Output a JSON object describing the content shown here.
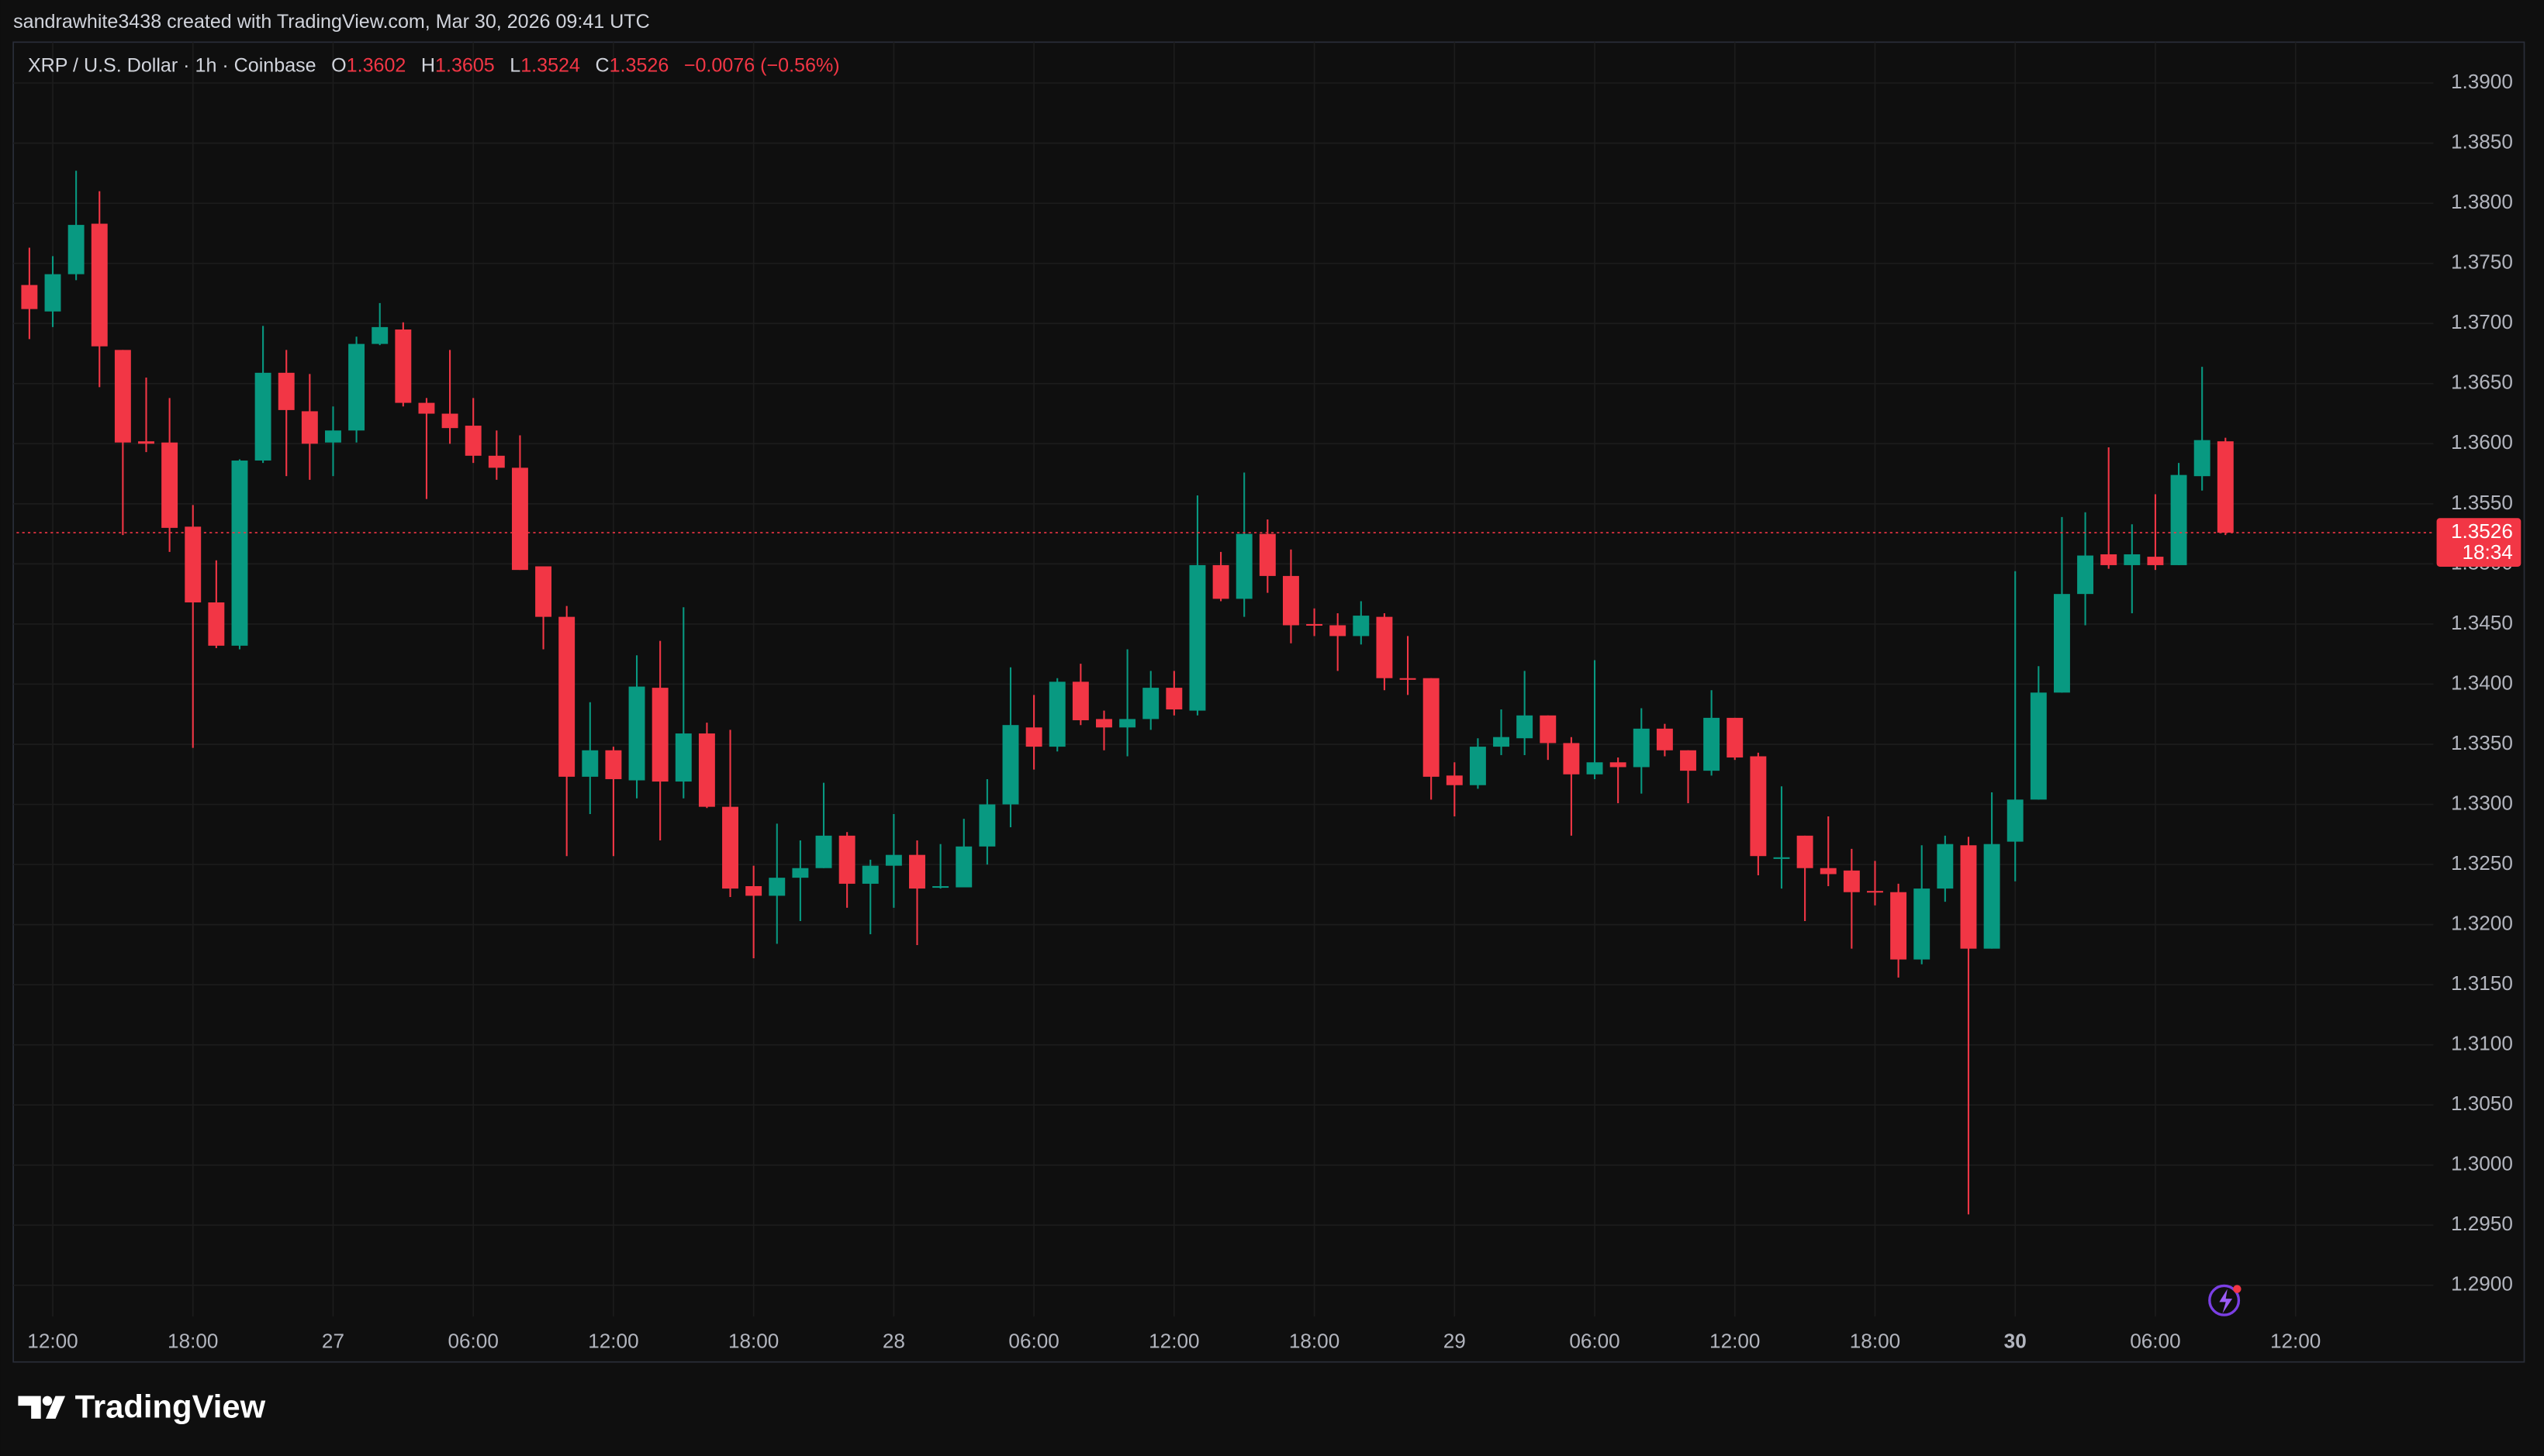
{
  "header": {
    "attribution": "sandrawhite3438 created with TradingView.com, Mar 30, 2026 09:41 UTC",
    "brand": "TradingView"
  },
  "chart_data": {
    "type": "candlestick",
    "title": "XRP / U.S. Dollar · 1h · Coinbase",
    "ohlc_labels": [
      "O",
      "H",
      "L",
      "C"
    ],
    "change": "−0.0076 (−0.56%)",
    "countdown": "18:34",
    "up_color": "#089981",
    "down_color": "#f23645",
    "grid": true,
    "open": [
      1.3732,
      1.371,
      1.3741,
      1.3783,
      1.3678,
      1.3602,
      1.3601,
      1.3531,
      1.3468,
      1.3432,
      1.3586,
      1.3659,
      1.3627,
      1.3601,
      1.3611,
      1.3683,
      1.3695,
      1.3634,
      1.3625,
      1.3615,
      1.359,
      1.358,
      1.3498,
      1.3456,
      1.3323,
      1.3345,
      1.332,
      1.3397,
      1.3319,
      1.3359,
      1.3298,
      1.3232,
      1.3224,
      1.3239,
      1.3247,
      1.3274,
      1.3234,
      1.3249,
      1.3258,
      1.3231,
      1.3231,
      1.3265,
      1.33,
      1.3364,
      1.3348,
      1.3402,
      1.3371,
      1.3364,
      1.3371,
      1.3397,
      1.3378,
      1.3499,
      1.3471,
      1.3525,
      1.349,
      1.345,
      1.3449,
      1.344,
      1.3456,
      1.3405,
      1.3405,
      1.3324,
      1.3316,
      1.3348,
      1.3355,
      1.3374,
      1.3351,
      1.3325,
      1.3335,
      1.3331,
      1.3363,
      1.3345,
      1.3328,
      1.3372,
      1.334,
      1.3255,
      1.3274,
      1.3247,
      1.3245,
      1.3228,
      1.3227,
      1.3171,
      1.323,
      1.3266,
      1.318,
      1.3269,
      1.3304,
      1.3393,
      1.3475,
      1.3508,
      1.3499,
      1.3506,
      1.3499,
      1.3573,
      1.3602
    ],
    "high": [
      1.3763,
      1.3756,
      1.3827,
      1.381,
      1.3678,
      1.3655,
      1.3638,
      1.3549,
      1.3503,
      1.3587,
      1.3698,
      1.3678,
      1.3658,
      1.3631,
      1.3689,
      1.3717,
      1.3701,
      1.3638,
      1.3678,
      1.3638,
      1.3611,
      1.3607,
      1.3498,
      1.3465,
      1.3385,
      1.3348,
      1.3424,
      1.3436,
      1.3464,
      1.3368,
      1.3362,
      1.3249,
      1.3284,
      1.327,
      1.3318,
      1.3277,
      1.3254,
      1.3292,
      1.327,
      1.3267,
      1.3288,
      1.3321,
      1.3414,
      1.3391,
      1.3405,
      1.3417,
      1.3378,
      1.3429,
      1.3411,
      1.3411,
      1.3557,
      1.351,
      1.3576,
      1.3537,
      1.3512,
      1.3463,
      1.3459,
      1.3469,
      1.3459,
      1.344,
      1.3405,
      1.3335,
      1.3355,
      1.3379,
      1.3411,
      1.3374,
      1.3356,
      1.342,
      1.3339,
      1.338,
      1.3367,
      1.3345,
      1.3395,
      1.3372,
      1.3343,
      1.3315,
      1.3274,
      1.329,
      1.3263,
      1.3253,
      1.3234,
      1.3266,
      1.3274,
      1.3273,
      1.331,
      1.3494,
      1.3415,
      1.3539,
      1.3543,
      1.3597,
      1.3533,
      1.3558,
      1.3584,
      1.3664,
      1.3605
    ],
    "low": [
      1.3687,
      1.3697,
      1.3736,
      1.3647,
      1.3524,
      1.3593,
      1.351,
      1.3347,
      1.343,
      1.3429,
      1.3584,
      1.3573,
      1.357,
      1.3573,
      1.3601,
      1.3682,
      1.3631,
      1.3554,
      1.36,
      1.3584,
      1.357,
      1.3495,
      1.3429,
      1.3257,
      1.3292,
      1.3257,
      1.3305,
      1.327,
      1.3305,
      1.3297,
      1.3223,
      1.3172,
      1.3184,
      1.3203,
      1.3247,
      1.3214,
      1.3192,
      1.3214,
      1.3183,
      1.323,
      1.3231,
      1.325,
      1.3281,
      1.3329,
      1.3344,
      1.3366,
      1.3345,
      1.334,
      1.3362,
      1.3374,
      1.3374,
      1.3469,
      1.3456,
      1.3476,
      1.3434,
      1.344,
      1.3411,
      1.3433,
      1.3395,
      1.3391,
      1.3304,
      1.329,
      1.3313,
      1.3341,
      1.3341,
      1.3337,
      1.3274,
      1.3321,
      1.3301,
      1.3309,
      1.334,
      1.3301,
      1.3324,
      1.3337,
      1.3241,
      1.323,
      1.3203,
      1.3232,
      1.318,
      1.3216,
      1.3156,
      1.3167,
      1.3219,
      1.2959,
      1.318,
      1.3236,
      1.3304,
      1.3393,
      1.3449,
      1.3496,
      1.3459,
      1.3495,
      1.3499,
      1.3561,
      1.3524
    ],
    "close": [
      1.3712,
      1.3741,
      1.3782,
      1.3681,
      1.3601,
      1.36,
      1.353,
      1.3468,
      1.3432,
      1.3586,
      1.3659,
      1.3628,
      1.36,
      1.3611,
      1.3683,
      1.3697,
      1.3634,
      1.3625,
      1.3613,
      1.359,
      1.358,
      1.3495,
      1.3456,
      1.3323,
      1.3345,
      1.3321,
      1.3398,
      1.3319,
      1.3359,
      1.3298,
      1.323,
      1.3224,
      1.3239,
      1.3247,
      1.3274,
      1.3234,
      1.3249,
      1.3258,
      1.323,
      1.3232,
      1.3265,
      1.33,
      1.3366,
      1.3348,
      1.3402,
      1.337,
      1.3364,
      1.3371,
      1.3397,
      1.3379,
      1.3499,
      1.3471,
      1.3525,
      1.349,
      1.3449,
      1.3449,
      1.344,
      1.3457,
      1.3405,
      1.3404,
      1.3323,
      1.3316,
      1.3348,
      1.3356,
      1.3374,
      1.3351,
      1.3325,
      1.3335,
      1.3331,
      1.3363,
      1.3345,
      1.3328,
      1.3372,
      1.3339,
      1.3257,
      1.3256,
      1.3247,
      1.3242,
      1.3227,
      1.3227,
      1.3171,
      1.323,
      1.3267,
      1.318,
      1.3267,
      1.3304,
      1.3393,
      1.3475,
      1.3507,
      1.3499,
      1.3508,
      1.3499,
      1.3574,
      1.3603,
      1.3526
    ],
    "xlim": [
      -0.55,
      102.9
    ],
    "xticks": [
      {
        "value": 1,
        "label": "12:00"
      },
      {
        "value": 7,
        "label": "18:00"
      },
      {
        "value": 13,
        "label": "27"
      },
      {
        "value": 19,
        "label": "06:00"
      },
      {
        "value": 25,
        "label": "12:00"
      },
      {
        "value": 31,
        "label": "18:00"
      },
      {
        "value": 37,
        "label": "28"
      },
      {
        "value": 43,
        "label": "06:00"
      },
      {
        "value": 49,
        "label": "12:00"
      },
      {
        "value": 55,
        "label": "18:00"
      },
      {
        "value": 61,
        "label": "29"
      },
      {
        "value": 67,
        "label": "06:00"
      },
      {
        "value": 73,
        "label": "12:00"
      },
      {
        "value": 79,
        "label": "18:00"
      },
      {
        "value": 85,
        "label": "30"
      },
      {
        "value": 91,
        "label": "06:00"
      },
      {
        "value": 97,
        "label": "12:00"
      }
    ],
    "ylim": [
      1.2874,
      1.3934
    ],
    "yticks": [
      {
        "value": 1.29,
        "label": "1.2900"
      },
      {
        "value": 1.295,
        "label": "1.2950"
      },
      {
        "value": 1.3,
        "label": "1.3000"
      },
      {
        "value": 1.305,
        "label": "1.3050"
      },
      {
        "value": 1.31,
        "label": "1.3100"
      },
      {
        "value": 1.315,
        "label": "1.3150"
      },
      {
        "value": 1.32,
        "label": "1.3200"
      },
      {
        "value": 1.325,
        "label": "1.3250"
      },
      {
        "value": 1.33,
        "label": "1.3300"
      },
      {
        "value": 1.335,
        "label": "1.3350"
      },
      {
        "value": 1.34,
        "label": "1.3400"
      },
      {
        "value": 1.345,
        "label": "1.3450"
      },
      {
        "value": 1.35,
        "label": "1.3500"
      },
      {
        "value": 1.355,
        "label": "1.3550"
      },
      {
        "value": 1.36,
        "label": "1.3600"
      },
      {
        "value": 1.365,
        "label": "1.3650"
      },
      {
        "value": 1.37,
        "label": "1.3700"
      },
      {
        "value": 1.375,
        "label": "1.3750"
      },
      {
        "value": 1.38,
        "label": "1.3800"
      },
      {
        "value": 1.385,
        "label": "1.3850"
      },
      {
        "value": 1.39,
        "label": "1.3900"
      }
    ]
  }
}
